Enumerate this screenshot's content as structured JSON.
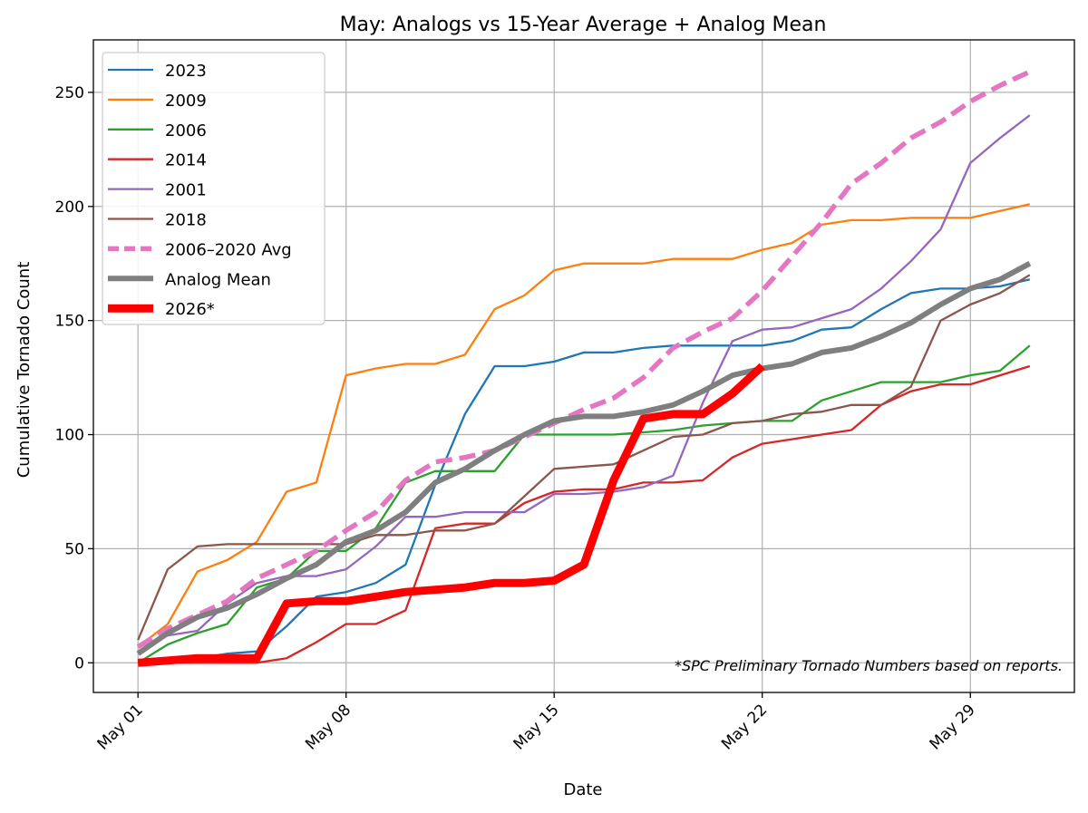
{
  "chart_data": {
    "type": "line",
    "title": "May: Analogs vs 15-Year Average + Analog Mean",
    "xlabel": "Date",
    "ylabel": "Cumulative Tornado Count",
    "x_axis": "date",
    "x_ticks": [
      {
        "date": "2025-05-01",
        "label": "May 01"
      },
      {
        "date": "2025-05-08",
        "label": "May 08"
      },
      {
        "date": "2025-05-15",
        "label": "May 15"
      },
      {
        "date": "2025-05-22",
        "label": "May 22"
      },
      {
        "date": "2025-05-29",
        "label": "May 29"
      }
    ],
    "y_ticks": [
      0,
      50,
      100,
      150,
      200,
      250
    ],
    "ylim": [
      -13,
      273
    ],
    "xlim": [
      "2025-04-29T12:00",
      "2025-06-01T12:00"
    ],
    "grid": true,
    "legend_position": "top-left",
    "annotation": "*SPC Preliminary Tornado Numbers based on reports.",
    "series": [
      {
        "name": "2023",
        "color": "#1f77b4",
        "width": 2.3,
        "dash": "",
        "x": [
          "2025-05-01",
          "2025-05-02",
          "2025-05-03",
          "2025-05-04",
          "2025-05-05",
          "2025-05-06",
          "2025-05-07",
          "2025-05-08",
          "2025-05-09",
          "2025-05-10",
          "2025-05-11",
          "2025-05-12",
          "2025-05-13",
          "2025-05-14",
          "2025-05-15",
          "2025-05-16",
          "2025-05-17",
          "2025-05-18",
          "2025-05-19",
          "2025-05-20",
          "2025-05-21",
          "2025-05-22",
          "2025-05-23",
          "2025-05-24",
          "2025-05-25",
          "2025-05-26",
          "2025-05-27",
          "2025-05-28",
          "2025-05-29",
          "2025-05-30",
          "2025-05-31"
        ],
        "y": [
          0,
          1,
          2,
          4,
          5,
          16,
          29,
          31,
          35,
          43,
          78,
          109,
          130,
          130,
          132,
          136,
          136,
          138,
          139,
          139,
          139,
          139,
          141,
          146,
          147,
          155,
          162,
          164,
          164,
          165,
          168
        ]
      },
      {
        "name": "2009",
        "color": "#ff7f0e",
        "width": 2.3,
        "dash": "",
        "x": [
          "2025-05-01",
          "2025-05-02",
          "2025-05-03",
          "2025-05-04",
          "2025-05-05",
          "2025-05-06",
          "2025-05-07",
          "2025-05-08",
          "2025-05-09",
          "2025-05-10",
          "2025-05-11",
          "2025-05-12",
          "2025-05-13",
          "2025-05-14",
          "2025-05-15",
          "2025-05-16",
          "2025-05-17",
          "2025-05-18",
          "2025-05-19",
          "2025-05-20",
          "2025-05-21",
          "2025-05-22",
          "2025-05-23",
          "2025-05-24",
          "2025-05-25",
          "2025-05-26",
          "2025-05-27",
          "2025-05-28",
          "2025-05-29",
          "2025-05-30",
          "2025-05-31"
        ],
        "y": [
          7,
          17,
          40,
          45,
          53,
          75,
          79,
          126,
          129,
          131,
          131,
          135,
          155,
          161,
          172,
          175,
          175,
          175,
          177,
          177,
          177,
          181,
          184,
          192,
          194,
          194,
          195,
          195,
          195,
          198,
          201
        ]
      },
      {
        "name": "2006",
        "color": "#2ca02c",
        "width": 2.3,
        "dash": "",
        "x": [
          "2025-05-01",
          "2025-05-02",
          "2025-05-03",
          "2025-05-04",
          "2025-05-05",
          "2025-05-06",
          "2025-05-07",
          "2025-05-08",
          "2025-05-09",
          "2025-05-10",
          "2025-05-11",
          "2025-05-12",
          "2025-05-13",
          "2025-05-14",
          "2025-05-15",
          "2025-05-16",
          "2025-05-17",
          "2025-05-18",
          "2025-05-19",
          "2025-05-20",
          "2025-05-21",
          "2025-05-22",
          "2025-05-23",
          "2025-05-24",
          "2025-05-25",
          "2025-05-26",
          "2025-05-27",
          "2025-05-28",
          "2025-05-29",
          "2025-05-30",
          "2025-05-31"
        ],
        "y": [
          0,
          8,
          13,
          17,
          33,
          37,
          49,
          49,
          59,
          79,
          84,
          84,
          84,
          100,
          100,
          100,
          100,
          101,
          102,
          104,
          105,
          106,
          106,
          115,
          119,
          123,
          123,
          123,
          126,
          128,
          139
        ]
      },
      {
        "name": "2014",
        "color": "#d62728",
        "width": 2.3,
        "dash": "",
        "x": [
          "2025-05-01",
          "2025-05-02",
          "2025-05-03",
          "2025-05-04",
          "2025-05-05",
          "2025-05-06",
          "2025-05-07",
          "2025-05-08",
          "2025-05-09",
          "2025-05-10",
          "2025-05-11",
          "2025-05-12",
          "2025-05-13",
          "2025-05-14",
          "2025-05-15",
          "2025-05-16",
          "2025-05-17",
          "2025-05-18",
          "2025-05-19",
          "2025-05-20",
          "2025-05-21",
          "2025-05-22",
          "2025-05-23",
          "2025-05-24",
          "2025-05-25",
          "2025-05-26",
          "2025-05-27",
          "2025-05-28",
          "2025-05-29",
          "2025-05-30",
          "2025-05-31"
        ],
        "y": [
          0,
          0,
          0,
          0,
          0,
          2,
          9,
          17,
          17,
          23,
          59,
          61,
          61,
          70,
          75,
          76,
          76,
          79,
          79,
          80,
          90,
          96,
          98,
          100,
          102,
          113,
          119,
          122,
          122,
          126,
          130
        ]
      },
      {
        "name": "2001",
        "color": "#9467bd",
        "width": 2.3,
        "dash": "",
        "x": [
          "2025-05-01",
          "2025-05-02",
          "2025-05-03",
          "2025-05-04",
          "2025-05-05",
          "2025-05-06",
          "2025-05-07",
          "2025-05-08",
          "2025-05-09",
          "2025-05-10",
          "2025-05-11",
          "2025-05-12",
          "2025-05-13",
          "2025-05-14",
          "2025-05-15",
          "2025-05-16",
          "2025-05-17",
          "2025-05-18",
          "2025-05-19",
          "2025-05-20",
          "2025-05-21",
          "2025-05-22",
          "2025-05-23",
          "2025-05-24",
          "2025-05-25",
          "2025-05-26",
          "2025-05-27",
          "2025-05-28",
          "2025-05-29",
          "2025-05-30",
          "2025-05-31"
        ],
        "y": [
          5,
          12,
          14,
          26,
          35,
          38,
          38,
          41,
          51,
          64,
          64,
          66,
          66,
          66,
          74,
          74,
          75,
          77,
          82,
          114,
          141,
          146,
          147,
          151,
          155,
          164,
          176,
          190,
          219,
          230,
          240
        ]
      },
      {
        "name": "2018",
        "color": "#8c564b",
        "width": 2.3,
        "dash": "",
        "x": [
          "2025-05-01",
          "2025-05-02",
          "2025-05-03",
          "2025-05-04",
          "2025-05-05",
          "2025-05-06",
          "2025-05-07",
          "2025-05-08",
          "2025-05-09",
          "2025-05-10",
          "2025-05-11",
          "2025-05-12",
          "2025-05-13",
          "2025-05-14",
          "2025-05-15",
          "2025-05-16",
          "2025-05-17",
          "2025-05-18",
          "2025-05-19",
          "2025-05-20",
          "2025-05-21",
          "2025-05-22",
          "2025-05-23",
          "2025-05-24",
          "2025-05-25",
          "2025-05-26",
          "2025-05-27",
          "2025-05-28",
          "2025-05-29",
          "2025-05-30",
          "2025-05-31"
        ],
        "y": [
          10,
          41,
          51,
          52,
          52,
          52,
          52,
          52,
          56,
          56,
          58,
          58,
          61,
          73,
          85,
          86,
          87,
          93,
          99,
          100,
          105,
          106,
          109,
          110,
          113,
          113,
          121,
          150,
          157,
          162,
          170
        ]
      },
      {
        "name": "2006–2020 Avg",
        "color": "#e377c2",
        "width": 5.5,
        "dash": "18 8",
        "x": [
          "2025-05-01",
          "2025-05-02",
          "2025-05-03",
          "2025-05-04",
          "2025-05-05",
          "2025-05-06",
          "2025-05-07",
          "2025-05-08",
          "2025-05-09",
          "2025-05-10",
          "2025-05-11",
          "2025-05-12",
          "2025-05-13",
          "2025-05-14",
          "2025-05-15",
          "2025-05-16",
          "2025-05-17",
          "2025-05-18",
          "2025-05-19",
          "2025-05-20",
          "2025-05-21",
          "2025-05-22",
          "2025-05-23",
          "2025-05-24",
          "2025-05-25",
          "2025-05-26",
          "2025-05-27",
          "2025-05-28",
          "2025-05-29",
          "2025-05-30",
          "2025-05-31"
        ],
        "y": [
          7,
          15,
          21,
          27,
          37,
          43,
          49,
          58,
          66,
          80,
          88,
          90,
          93,
          99,
          105,
          111,
          116,
          125,
          138,
          145,
          151,
          163,
          178,
          193,
          210,
          219,
          230,
          237,
          246,
          253,
          259
        ]
      },
      {
        "name": "Analog Mean",
        "color": "#7f7f7f",
        "width": 6,
        "dash": "",
        "x": [
          "2025-05-01",
          "2025-05-02",
          "2025-05-03",
          "2025-05-04",
          "2025-05-05",
          "2025-05-06",
          "2025-05-07",
          "2025-05-08",
          "2025-05-09",
          "2025-05-10",
          "2025-05-11",
          "2025-05-12",
          "2025-05-13",
          "2025-05-14",
          "2025-05-15",
          "2025-05-16",
          "2025-05-17",
          "2025-05-18",
          "2025-05-19",
          "2025-05-20",
          "2025-05-21",
          "2025-05-22",
          "2025-05-23",
          "2025-05-24",
          "2025-05-25",
          "2025-05-26",
          "2025-05-27",
          "2025-05-28",
          "2025-05-29",
          "2025-05-30",
          "2025-05-31"
        ],
        "y": [
          4,
          13,
          20,
          24,
          30,
          37,
          43,
          53,
          58,
          66,
          79,
          85,
          93,
          100,
          106,
          108,
          108,
          110,
          113,
          119,
          126,
          129,
          131,
          136,
          138,
          143,
          149,
          157,
          164,
          168,
          175
        ]
      },
      {
        "name": "2026*",
        "color": "#ff0000",
        "width": 9,
        "dash": "",
        "x": [
          "2025-05-01",
          "2025-05-02",
          "2025-05-03",
          "2025-05-04",
          "2025-05-05",
          "2025-05-06",
          "2025-05-07",
          "2025-05-08",
          "2025-05-09",
          "2025-05-10",
          "2025-05-11",
          "2025-05-12",
          "2025-05-13",
          "2025-05-14",
          "2025-05-15",
          "2025-05-16",
          "2025-05-17",
          "2025-05-18",
          "2025-05-19",
          "2025-05-20",
          "2025-05-21",
          "2025-05-22"
        ],
        "y": [
          0,
          1,
          2,
          2,
          2,
          26,
          27,
          27,
          29,
          31,
          32,
          33,
          35,
          35,
          36,
          43,
          80,
          107,
          109,
          109,
          118,
          130
        ]
      }
    ]
  }
}
